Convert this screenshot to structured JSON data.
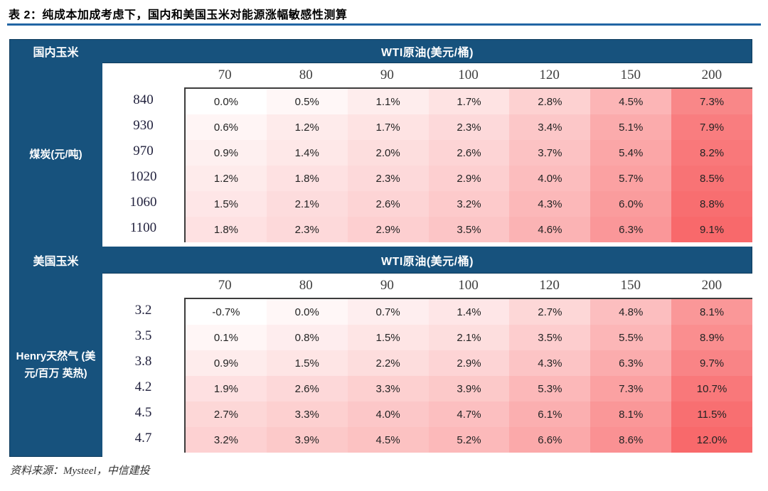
{
  "page_title": "表 2：纯成本加成考虑下，国内和美国玉米对能源涨幅敏感性测算",
  "source_note": "资料来源：Mysteel，中信建投",
  "colors": {
    "panel_blue": "#17527D",
    "title_rule_blue": "#2265A4",
    "heat_min": "#FFFFFF",
    "heat_max": "#F8696B"
  },
  "chart_data": [
    {
      "type": "heatmap",
      "section_label": "国内玉米",
      "column_group_label": "WTI原油(美元/桶)",
      "row_group_label": "煤炭(元/吨)",
      "columns": [
        "70",
        "80",
        "90",
        "100",
        "120",
        "150",
        "200"
      ],
      "rows": [
        "840",
        "930",
        "970",
        "1020",
        "1060",
        "1100"
      ],
      "values": [
        [
          0.0,
          0.5,
          1.1,
          1.7,
          2.8,
          4.5,
          7.3
        ],
        [
          0.6,
          1.2,
          1.7,
          2.3,
          3.4,
          5.1,
          7.9
        ],
        [
          0.9,
          1.4,
          2.0,
          2.6,
          3.7,
          5.4,
          8.2
        ],
        [
          1.2,
          1.8,
          2.3,
          2.9,
          4.0,
          5.7,
          8.5
        ],
        [
          1.5,
          2.1,
          2.6,
          3.2,
          4.3,
          6.0,
          8.8
        ],
        [
          1.8,
          2.3,
          2.9,
          3.5,
          4.6,
          6.3,
          9.1
        ]
      ],
      "value_format": "percent_1dp",
      "color_scale": {
        "min_color": "#FFFFFF",
        "max_color": "#F8696B"
      }
    },
    {
      "type": "heatmap",
      "section_label": "美国玉米",
      "column_group_label": "WTI原油(美元/桶)",
      "row_group_label": "Henry天然气 (美元/百万 英热)",
      "columns": [
        "70",
        "80",
        "90",
        "100",
        "120",
        "150",
        "200"
      ],
      "rows": [
        "3.2",
        "3.5",
        "3.8",
        "4.2",
        "4.5",
        "4.7"
      ],
      "values": [
        [
          -0.7,
          0.0,
          0.7,
          1.4,
          2.7,
          4.8,
          8.1
        ],
        [
          0.1,
          0.8,
          1.5,
          2.1,
          3.5,
          5.5,
          8.9
        ],
        [
          0.9,
          1.5,
          2.2,
          2.9,
          4.3,
          6.3,
          9.7
        ],
        [
          1.9,
          2.6,
          3.3,
          3.9,
          5.3,
          7.3,
          10.7
        ],
        [
          2.7,
          3.3,
          4.0,
          4.7,
          6.1,
          8.1,
          11.5
        ],
        [
          3.2,
          3.9,
          4.5,
          5.2,
          6.6,
          8.6,
          12.0
        ]
      ],
      "value_format": "percent_1dp",
      "color_scale": {
        "min_color": "#FFFFFF",
        "max_color": "#F8696B"
      }
    }
  ]
}
